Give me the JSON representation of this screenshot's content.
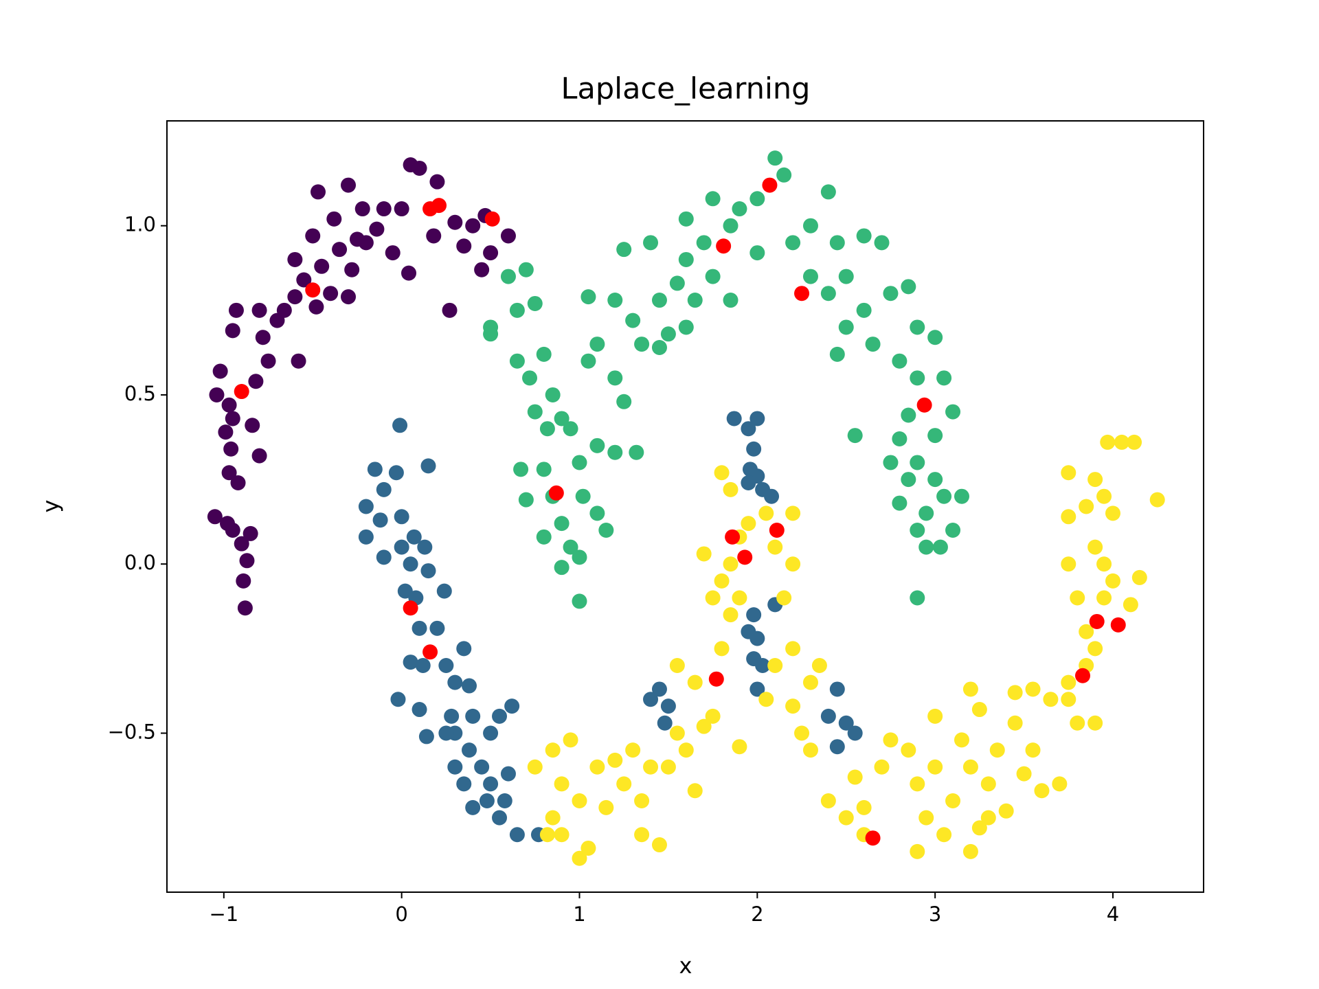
{
  "chart_data": {
    "type": "scatter",
    "title": "Laplace_learning",
    "x_label": "x",
    "y_label": "y",
    "xlim": [
      -1.32,
      4.51
    ],
    "ylim": [
      -0.97,
      1.31
    ],
    "xticks": [
      {
        "value": -1,
        "label": "−1"
      },
      0,
      1,
      2,
      3,
      4
    ],
    "yticks": [
      {
        "value": -0.5,
        "label": "−0.5"
      },
      {
        "value": 0,
        "label": "0.0"
      },
      0.5,
      {
        "value": 1,
        "label": "1.0"
      }
    ],
    "series": [
      {
        "color": "#440154",
        "x": [
          -0.88,
          -0.89,
          -0.87,
          -0.9,
          -0.85,
          -0.95,
          -1.05,
          -0.98,
          -0.92,
          -0.97,
          -0.96,
          -0.99,
          -0.95,
          -0.84,
          -0.8,
          -1.04,
          -0.97,
          -1.02,
          -0.82,
          -0.75,
          -0.78,
          -0.7,
          -0.66,
          -0.58,
          -0.95,
          -0.93,
          -0.8,
          -0.6,
          -0.55,
          -0.48,
          -0.45,
          -0.4,
          -0.3,
          -0.28,
          -0.35,
          -0.5,
          -0.6,
          -0.47,
          -0.3,
          -0.22,
          -0.2,
          -0.1,
          -0.05,
          0.04,
          0.0,
          0.05,
          0.1,
          0.2,
          0.3,
          0.35,
          0.27,
          0.4,
          0.45,
          0.5,
          0.6,
          0.47,
          0.18,
          -0.14,
          -0.25,
          -0.38
        ],
        "y": [
          -0.13,
          -0.05,
          0.01,
          0.06,
          0.09,
          0.1,
          0.14,
          0.12,
          0.24,
          0.27,
          0.34,
          0.39,
          0.43,
          0.41,
          0.32,
          0.5,
          0.47,
          0.57,
          0.54,
          0.6,
          0.67,
          0.72,
          0.75,
          0.6,
          0.69,
          0.75,
          0.75,
          0.79,
          0.84,
          0.76,
          0.88,
          0.8,
          0.79,
          0.87,
          0.93,
          0.97,
          0.9,
          1.1,
          1.12,
          1.05,
          0.95,
          1.05,
          0.92,
          0.86,
          1.05,
          1.18,
          1.17,
          1.13,
          1.01,
          0.94,
          0.75,
          1.0,
          0.87,
          0.92,
          0.97,
          1.03,
          0.97,
          0.99,
          0.96,
          1.02
        ]
      },
      {
        "color": "#31688e",
        "x": [
          -0.01,
          0.15,
          -0.15,
          -0.03,
          -0.1,
          -0.2,
          -0.12,
          0.0,
          -0.2,
          -0.1,
          0.0,
          0.07,
          0.13,
          0.05,
          0.15,
          0.02,
          0.08,
          0.24,
          0.1,
          0.2,
          0.05,
          0.12,
          0.25,
          0.35,
          0.3,
          0.38,
          -0.02,
          0.1,
          0.14,
          0.28,
          0.3,
          0.4,
          0.5,
          0.55,
          0.62,
          0.38,
          0.45,
          0.35,
          0.5,
          0.58,
          0.4,
          0.55,
          0.65,
          0.77,
          0.6,
          0.48,
          0.3,
          0.25,
          1.87,
          1.95,
          2.0,
          1.98,
          1.96,
          2.0,
          2.03,
          2.08,
          1.95,
          2.1,
          1.98,
          1.95,
          2.0,
          1.98,
          2.03,
          2.0,
          1.45,
          1.5,
          1.4,
          1.48,
          2.45,
          2.4,
          2.5,
          2.55,
          2.45
        ],
        "y": [
          0.41,
          0.29,
          0.28,
          0.27,
          0.22,
          0.17,
          0.13,
          0.14,
          0.08,
          0.02,
          0.05,
          0.08,
          0.05,
          0.0,
          -0.02,
          -0.08,
          -0.1,
          -0.08,
          -0.19,
          -0.19,
          -0.29,
          -0.3,
          -0.3,
          -0.25,
          -0.35,
          -0.36,
          -0.4,
          -0.43,
          -0.51,
          -0.45,
          -0.5,
          -0.45,
          -0.5,
          -0.45,
          -0.42,
          -0.55,
          -0.6,
          -0.65,
          -0.65,
          -0.7,
          -0.72,
          -0.75,
          -0.8,
          -0.8,
          -0.62,
          -0.7,
          -0.6,
          -0.5,
          0.43,
          0.4,
          0.43,
          0.34,
          0.28,
          0.26,
          0.22,
          0.2,
          0.24,
          -0.12,
          -0.15,
          -0.2,
          -0.22,
          -0.28,
          -0.3,
          -0.37,
          -0.37,
          -0.42,
          -0.4,
          -0.47,
          -0.37,
          -0.45,
          -0.47,
          -0.5,
          -0.54
        ]
      },
      {
        "color": "#35b779",
        "x": [
          0.6,
          0.7,
          0.65,
          0.75,
          0.5,
          0.5,
          0.65,
          0.72,
          0.8,
          0.85,
          0.75,
          0.82,
          0.9,
          0.95,
          0.67,
          0.7,
          0.8,
          0.85,
          0.8,
          0.9,
          0.95,
          0.9,
          1.0,
          1.0,
          1.02,
          1.1,
          1.15,
          1.0,
          1.05,
          1.1,
          1.2,
          1.25,
          1.1,
          1.2,
          1.32,
          1.05,
          1.2,
          1.3,
          1.35,
          1.45,
          1.5,
          1.6,
          1.45,
          1.55,
          1.25,
          1.4,
          1.6,
          1.7,
          1.6,
          1.75,
          1.85,
          1.65,
          1.75,
          1.85,
          1.9,
          2.0,
          2.0,
          2.1,
          2.15,
          2.2,
          2.3,
          2.4,
          2.45,
          2.3,
          2.4,
          2.5,
          2.6,
          2.7,
          2.75,
          2.6,
          2.5,
          2.45,
          2.65,
          2.85,
          2.9,
          2.8,
          2.9,
          3.0,
          3.05,
          3.1,
          3.0,
          2.85,
          2.8,
          2.9,
          2.85,
          3.0,
          2.95,
          3.05,
          3.1,
          3.15,
          2.8,
          2.9,
          2.95,
          3.03,
          2.9,
          2.55,
          2.75
        ],
        "y": [
          0.85,
          0.87,
          0.75,
          0.77,
          0.7,
          0.68,
          0.6,
          0.55,
          0.62,
          0.5,
          0.45,
          0.4,
          0.43,
          0.4,
          0.28,
          0.19,
          0.28,
          0.2,
          0.08,
          0.12,
          0.05,
          -0.01,
          0.02,
          0.3,
          0.2,
          0.15,
          0.1,
          -0.11,
          0.6,
          0.65,
          0.55,
          0.48,
          0.35,
          0.33,
          0.33,
          0.79,
          0.78,
          0.72,
          0.65,
          0.64,
          0.68,
          0.7,
          0.78,
          0.83,
          0.93,
          0.95,
          0.9,
          0.95,
          1.02,
          1.08,
          1.0,
          0.78,
          0.85,
          0.78,
          1.05,
          1.08,
          0.92,
          1.2,
          1.15,
          0.95,
          1.0,
          1.1,
          0.95,
          0.85,
          0.8,
          0.85,
          0.97,
          0.95,
          0.8,
          0.75,
          0.7,
          0.62,
          0.65,
          0.82,
          0.7,
          0.6,
          0.55,
          0.67,
          0.55,
          0.45,
          0.38,
          0.44,
          0.37,
          0.3,
          0.25,
          0.25,
          0.15,
          0.2,
          0.1,
          0.2,
          0.18,
          0.1,
          0.05,
          0.05,
          -0.1,
          0.38,
          0.3
        ]
      },
      {
        "color": "#fde725",
        "x": [
          0.75,
          0.85,
          0.95,
          0.9,
          1.0,
          0.85,
          0.9,
          1.0,
          1.05,
          1.1,
          1.15,
          1.2,
          1.25,
          1.3,
          1.35,
          1.4,
          1.35,
          1.45,
          1.5,
          1.55,
          1.6,
          1.65,
          1.7,
          1.55,
          1.65,
          1.75,
          1.8,
          1.85,
          1.75,
          1.8,
          1.7,
          1.85,
          1.9,
          1.95,
          2.05,
          2.1,
          1.9,
          2.2,
          2.15,
          2.2,
          2.1,
          2.05,
          2.2,
          2.3,
          2.35,
          2.25,
          2.3,
          1.8,
          1.85,
          1.9,
          2.2,
          2.4,
          2.5,
          2.6,
          2.55,
          2.7,
          2.75,
          2.85,
          2.9,
          2.95,
          3.0,
          3.05,
          3.1,
          3.15,
          3.2,
          3.25,
          3.3,
          3.35,
          3.4,
          3.45,
          3.5,
          3.55,
          3.6,
          3.7,
          3.45,
          3.55,
          3.65,
          3.75,
          3.8,
          3.9,
          3.75,
          3.2,
          3.25,
          2.9,
          3.2,
          3.3,
          3.0,
          3.8,
          3.85,
          3.9,
          3.95,
          4.0,
          4.1,
          4.15,
          3.75,
          3.9,
          3.95,
          3.75,
          3.85,
          3.95,
          4.0,
          3.9,
          3.75,
          4.05,
          3.97,
          4.25,
          4.12,
          0.82,
          2.6,
          3.85
        ],
        "y": [
          -0.6,
          -0.55,
          -0.52,
          -0.65,
          -0.7,
          -0.75,
          -0.8,
          -0.87,
          -0.84,
          -0.6,
          -0.72,
          -0.58,
          -0.65,
          -0.55,
          -0.7,
          -0.6,
          -0.8,
          -0.83,
          -0.6,
          -0.5,
          -0.55,
          -0.67,
          -0.48,
          -0.3,
          -0.35,
          -0.45,
          -0.25,
          -0.15,
          -0.1,
          -0.05,
          0.03,
          0.0,
          0.08,
          0.12,
          0.15,
          0.05,
          -0.1,
          0.0,
          -0.1,
          -0.25,
          -0.3,
          -0.4,
          -0.42,
          -0.35,
          -0.3,
          -0.5,
          -0.55,
          0.27,
          0.22,
          -0.54,
          0.15,
          -0.7,
          -0.75,
          -0.72,
          -0.63,
          -0.6,
          -0.52,
          -0.55,
          -0.65,
          -0.75,
          -0.6,
          -0.8,
          -0.7,
          -0.52,
          -0.6,
          -0.78,
          -0.65,
          -0.55,
          -0.73,
          -0.47,
          -0.62,
          -0.55,
          -0.67,
          -0.65,
          -0.38,
          -0.37,
          -0.4,
          -0.4,
          -0.47,
          -0.47,
          -0.35,
          -0.37,
          -0.43,
          -0.85,
          -0.85,
          -0.75,
          -0.45,
          -0.1,
          -0.2,
          -0.25,
          -0.1,
          -0.05,
          -0.12,
          -0.04,
          0.0,
          0.05,
          0.0,
          0.14,
          0.17,
          0.2,
          0.15,
          0.25,
          0.27,
          0.36,
          0.36,
          0.19,
          0.36,
          -0.8,
          -0.8,
          -0.3
        ]
      },
      {
        "color": "#ff0000",
        "x": [
          -0.9,
          -0.5,
          0.16,
          0.21,
          0.51,
          0.87,
          1.81,
          2.07,
          2.25,
          2.94,
          1.86,
          1.93,
          2.11,
          0.05,
          0.16,
          1.77,
          2.65,
          3.83,
          3.91,
          4.03
        ],
        "y": [
          0.51,
          0.81,
          1.05,
          1.06,
          1.02,
          0.21,
          0.94,
          1.12,
          0.8,
          0.47,
          0.08,
          0.02,
          0.1,
          -0.13,
          -0.26,
          -0.34,
          -0.81,
          -0.33,
          -0.17,
          -0.18
        ]
      }
    ]
  }
}
